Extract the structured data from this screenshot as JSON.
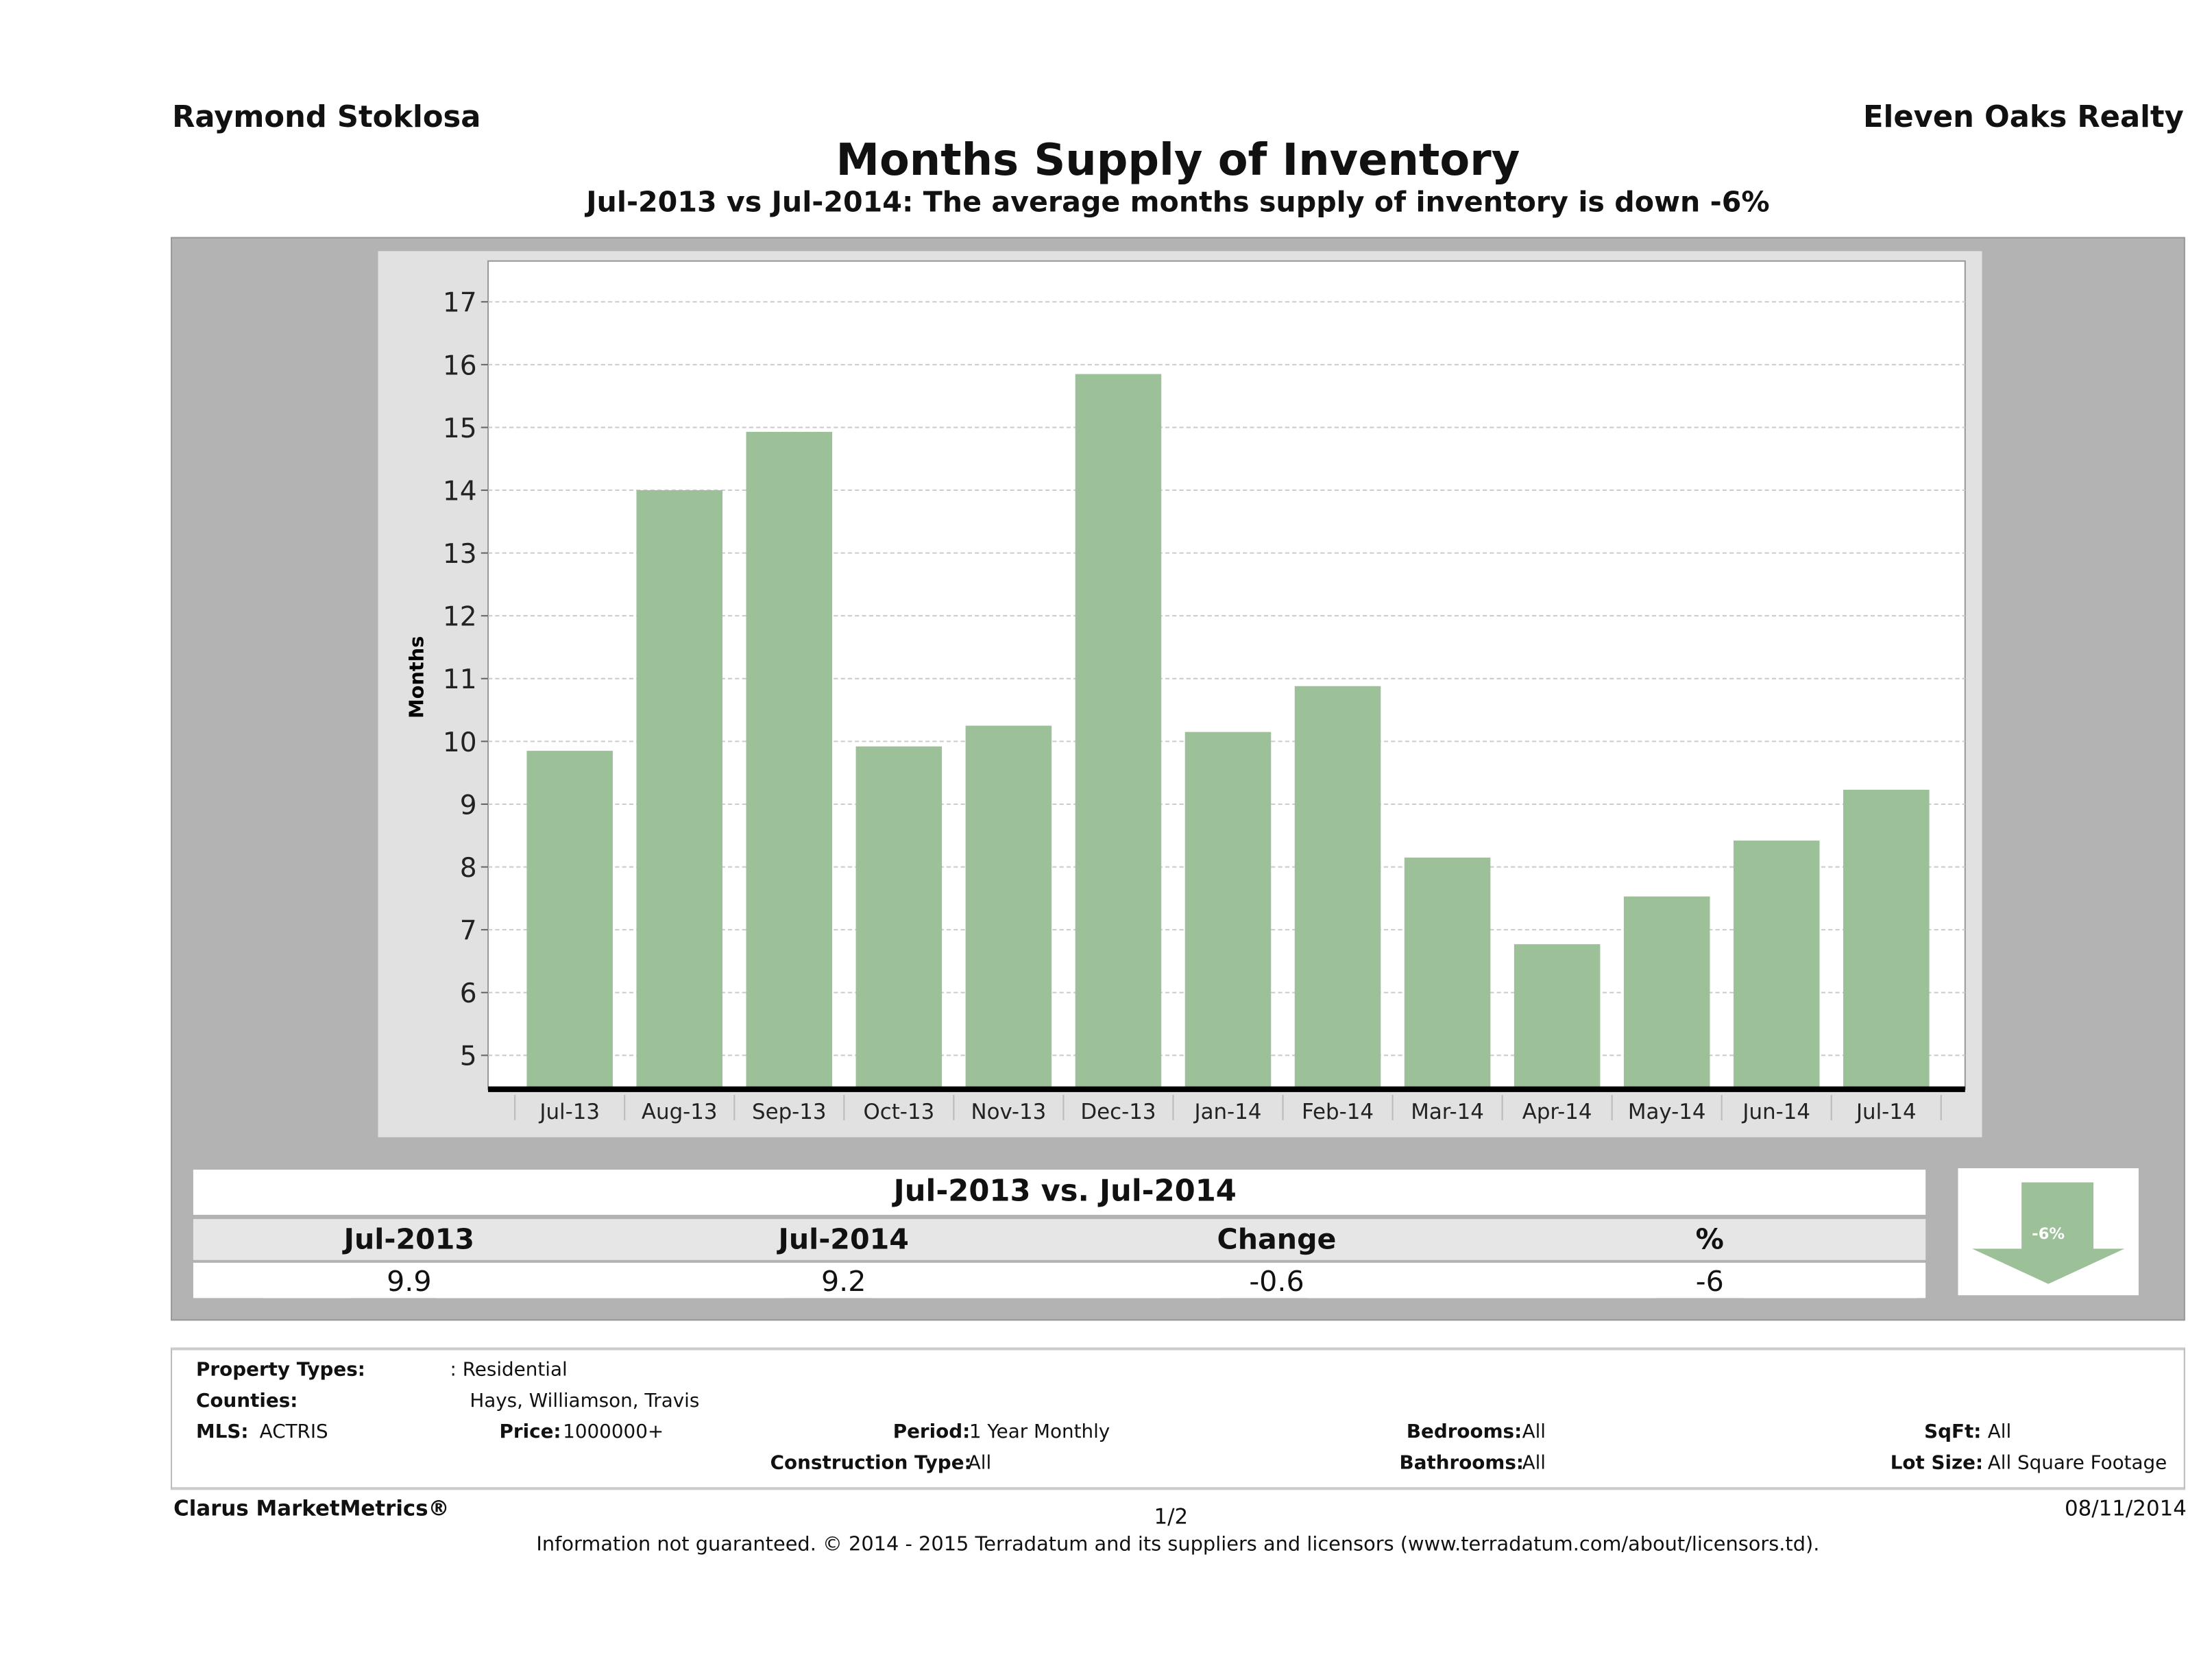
{
  "header": {
    "agent": "Raymond Stoklosa",
    "broker": "Eleven Oaks Realty",
    "title": "Months Supply of Inventory",
    "subtitle": "Jul-2013 vs Jul-2014: The average months supply of inventory is down -6%"
  },
  "chart_data": {
    "type": "bar",
    "title": "Months Supply of Inventory",
    "xlabel": "",
    "ylabel": "Months",
    "categories": [
      "Jul-13",
      "Aug-13",
      "Sep-13",
      "Oct-13",
      "Nov-13",
      "Dec-13",
      "Jan-14",
      "Feb-14",
      "Mar-14",
      "Apr-14",
      "May-14",
      "Jun-14",
      "Jul-14"
    ],
    "values": [
      9.85,
      14.0,
      14.93,
      9.92,
      10.25,
      15.85,
      10.15,
      10.88,
      8.15,
      6.77,
      7.53,
      8.42,
      9.23
    ],
    "yticks": [
      5,
      6,
      7,
      8,
      9,
      10,
      11,
      12,
      13,
      14,
      15,
      16,
      17
    ],
    "ylim": [
      4.46,
      17.65
    ],
    "grid": true,
    "bar_color": "#9cc198"
  },
  "summary": {
    "title": "Jul-2013 vs. Jul-2014",
    "headers": [
      "Jul-2013",
      "Jul-2014",
      "Change",
      "%"
    ],
    "values": [
      "9.9",
      "9.2",
      "-0.6",
      "-6"
    ],
    "arrow_label": "-6%",
    "arrow_color": "#9cc198"
  },
  "filters": {
    "property_types_label": "Property Types:",
    "property_types": ": Residential",
    "counties_label": "Counties:",
    "counties": "Hays, Williamson, Travis",
    "mls_label": "MLS:",
    "mls": "ACTRIS",
    "price_label": "Price:",
    "price": "1000000+",
    "period_label": "Period:",
    "period": "1 Year Monthly",
    "construction_label": "Construction Type:",
    "construction": "All",
    "bedrooms_label": "Bedrooms:",
    "bedrooms": "All",
    "bathrooms_label": "Bathrooms:",
    "bathrooms": "All",
    "sqft_label": "SqFt:",
    "sqft": "All",
    "lot_label": "Lot Size:",
    "lot": "All Square Footage"
  },
  "footer": {
    "brand": "Clarus MarketMetrics®",
    "page": "1/2",
    "date": "08/11/2014",
    "disclaimer": "Information not guaranteed. © 2014 - 2015 Terradatum and its suppliers and licensors (www.terradatum.com/about/licensors.td)."
  }
}
